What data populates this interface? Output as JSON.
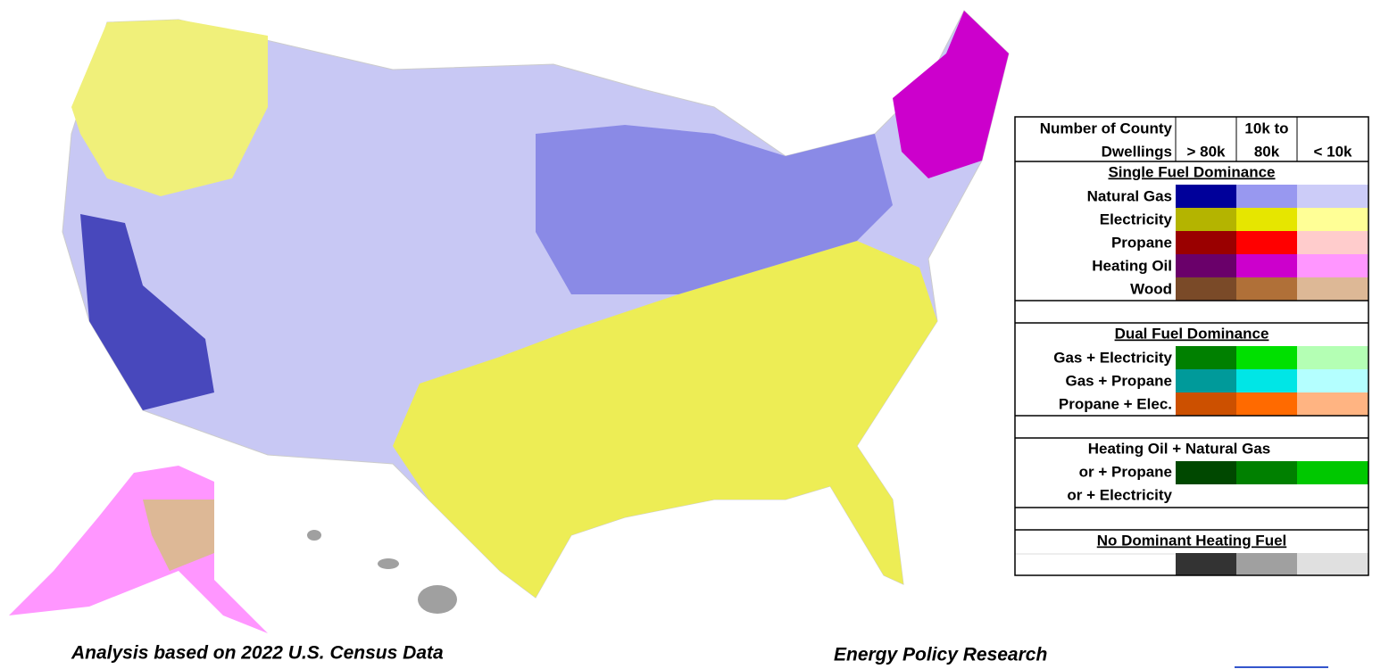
{
  "title": {
    "line1": "Number of County",
    "line2": "Dwellings"
  },
  "columns": [
    [
      "> 80k"
    ],
    [
      "10k to",
      "80k"
    ],
    [
      "< 10k"
    ]
  ],
  "sections": [
    {
      "title": "Single Fuel Dominance",
      "rows": [
        {
          "label": "Natural Gas",
          "colors": [
            "#00009a",
            "#9898f0",
            "#ccccf8"
          ]
        },
        {
          "label": "Electricity",
          "colors": [
            "#b4b400",
            "#e6e600",
            "#ffff96"
          ]
        },
        {
          "label": "Propane",
          "colors": [
            "#9a0000",
            "#ff0000",
            "#ffcccc"
          ]
        },
        {
          "label": "Heating Oil",
          "colors": [
            "#6a006a",
            "#cc00cc",
            "#ff96ff"
          ]
        },
        {
          "label": "Wood",
          "colors": [
            "#7a4a28",
            "#b07038",
            "#ddb896"
          ]
        }
      ]
    },
    {
      "title": "Dual Fuel Dominance",
      "rows": [
        {
          "label": "Gas + Electricity",
          "colors": [
            "#008000",
            "#00e000",
            "#b4ffb4"
          ]
        },
        {
          "label": "Gas + Propane",
          "colors": [
            "#009a9a",
            "#00e6e6",
            "#b4ffff"
          ]
        },
        {
          "label": "Propane + Elec.",
          "colors": [
            "#cc5000",
            "#ff6a00",
            "#ffb482"
          ]
        }
      ]
    },
    {
      "lines": [
        "Heating Oil + Natural Gas",
        "or + Propane",
        "or + Electricity"
      ],
      "colors": [
        "#004800",
        "#008000",
        "#00c800"
      ]
    },
    {
      "title": "No Dominant Heating Fuel",
      "colors": [
        "#333333",
        "#a0a0a0",
        "#e0e0e0"
      ]
    }
  ],
  "footer": {
    "left": "Analysis based on 2022 U.S. Census Data",
    "right": "Energy Policy Research"
  }
}
